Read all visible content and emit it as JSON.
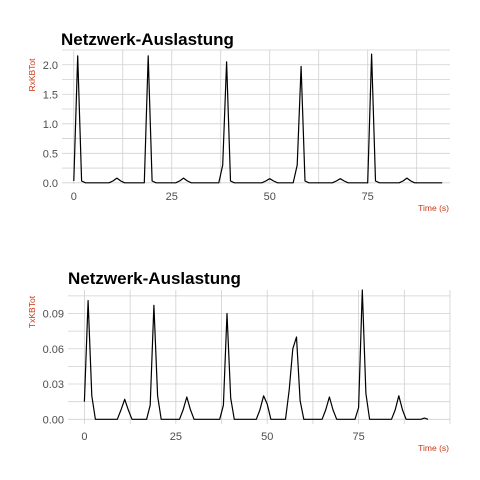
{
  "chart_data": [
    {
      "type": "line",
      "title": "Netzwerk-Auslastung",
      "xlabel": "Time (s)",
      "ylabel": "RxKBTot",
      "xlim": [
        -3,
        96
      ],
      "ylim": [
        -0.02,
        2.25
      ],
      "x_ticks": [
        0,
        25,
        50,
        75
      ],
      "y_ticks": [
        0.0,
        0.5,
        1.0,
        1.5,
        2.0
      ],
      "y_tick_labels": [
        "0.0",
        "0.5",
        "1.0",
        "1.5",
        "2.0"
      ],
      "grid": true,
      "label_color": "#cc3311",
      "series": [
        {
          "x": [
            0,
            1,
            2,
            3,
            4,
            5,
            6,
            7,
            8,
            9,
            10,
            11,
            12,
            13,
            14,
            15,
            16,
            17,
            18,
            19,
            20,
            21,
            22,
            23,
            24,
            25,
            26,
            27,
            28,
            29,
            30,
            31,
            32,
            33,
            34,
            35,
            36,
            37,
            38,
            39,
            40,
            41,
            42,
            43,
            44,
            45,
            46,
            47,
            48,
            49,
            50,
            51,
            52,
            53,
            54,
            55,
            56,
            57,
            58,
            59,
            60,
            61,
            62,
            63,
            64,
            65,
            66,
            67,
            68,
            69,
            70,
            71,
            72,
            73,
            74,
            75,
            76,
            77,
            78,
            79,
            80,
            81,
            82,
            83,
            84,
            85,
            86,
            87,
            88,
            89,
            90,
            91,
            92,
            93,
            94
          ],
          "y": [
            0.03,
            2.15,
            0.03,
            0.0,
            0.0,
            0.0,
            0.0,
            0.0,
            0.0,
            0.0,
            0.03,
            0.08,
            0.03,
            0.0,
            0.0,
            0.0,
            0.0,
            0.0,
            0.0,
            2.15,
            0.03,
            0.0,
            0.0,
            0.0,
            0.0,
            0.0,
            0.0,
            0.03,
            0.08,
            0.03,
            0.0,
            0.0,
            0.0,
            0.0,
            0.0,
            0.0,
            0.0,
            0.0,
            0.3,
            2.05,
            0.03,
            0.0,
            0.0,
            0.0,
            0.0,
            0.0,
            0.0,
            0.0,
            0.0,
            0.03,
            0.07,
            0.03,
            0.0,
            0.0,
            0.0,
            0.0,
            0.0,
            0.3,
            1.97,
            0.03,
            0.0,
            0.0,
            0.0,
            0.0,
            0.0,
            0.0,
            0.0,
            0.03,
            0.07,
            0.03,
            0.0,
            0.0,
            0.0,
            0.0,
            0.0,
            0.0,
            2.18,
            0.03,
            0.0,
            0.0,
            0.0,
            0.0,
            0.0,
            0.0,
            0.03,
            0.08,
            0.03,
            0.0,
            0.0,
            0.0,
            0.0,
            0.0,
            0.0,
            0.0,
            0.0
          ]
        }
      ]
    },
    {
      "type": "line",
      "title": "Netzwerk-Auslastung",
      "xlabel": "Time (s)",
      "ylabel": "TxKBTot",
      "xlim": [
        -4.5,
        100
      ],
      "ylim": [
        -0.004,
        0.11
      ],
      "x_ticks": [
        0,
        25,
        50,
        75
      ],
      "y_ticks": [
        0.0,
        0.03,
        0.06,
        0.09
      ],
      "y_tick_labels": [
        "0.00",
        "0.03",
        "0.06",
        "0.09"
      ],
      "grid": true,
      "label_color": "#cc3311",
      "series": [
        {
          "x": [
            0,
            1,
            2,
            3,
            4,
            5,
            6,
            7,
            8,
            9,
            10,
            11,
            12,
            13,
            14,
            15,
            16,
            17,
            18,
            19,
            20,
            21,
            22,
            23,
            24,
            25,
            26,
            27,
            28,
            29,
            30,
            31,
            32,
            33,
            34,
            35,
            36,
            37,
            38,
            39,
            40,
            41,
            42,
            43,
            44,
            45,
            46,
            47,
            48,
            49,
            50,
            51,
            52,
            53,
            54,
            55,
            56,
            57,
            58,
            59,
            60,
            61,
            62,
            63,
            64,
            65,
            66,
            67,
            68,
            69,
            70,
            71,
            72,
            73,
            74,
            75,
            76,
            77,
            78,
            79,
            80,
            81,
            82,
            83,
            84,
            85,
            86,
            87,
            88,
            89,
            90,
            91,
            92,
            93,
            94
          ],
          "y": [
            0.015,
            0.101,
            0.02,
            0.0,
            0.0,
            0.0,
            0.0,
            0.0,
            0.0,
            0.0,
            0.008,
            0.017,
            0.008,
            0.0,
            0.0,
            0.0,
            0.0,
            0.0,
            0.012,
            0.097,
            0.02,
            0.0,
            0.0,
            0.0,
            0.0,
            0.0,
            0.0,
            0.008,
            0.019,
            0.008,
            0.0,
            0.0,
            0.0,
            0.0,
            0.0,
            0.0,
            0.0,
            0.0,
            0.012,
            0.09,
            0.018,
            0.0,
            0.0,
            0.0,
            0.0,
            0.0,
            0.0,
            0.0,
            0.008,
            0.02,
            0.013,
            0.0,
            0.0,
            0.0,
            0.0,
            0.0,
            0.025,
            0.06,
            0.07,
            0.016,
            0.0,
            0.0,
            0.0,
            0.0,
            0.0,
            0.0,
            0.008,
            0.019,
            0.008,
            0.0,
            0.0,
            0.0,
            0.0,
            0.0,
            0.0,
            0.01,
            0.11,
            0.022,
            0.0,
            0.0,
            0.0,
            0.0,
            0.0,
            0.0,
            0.0,
            0.008,
            0.02,
            0.008,
            0.0,
            0.0,
            0.0,
            0.0,
            0.0,
            0.001,
            0.0
          ]
        }
      ]
    }
  ]
}
